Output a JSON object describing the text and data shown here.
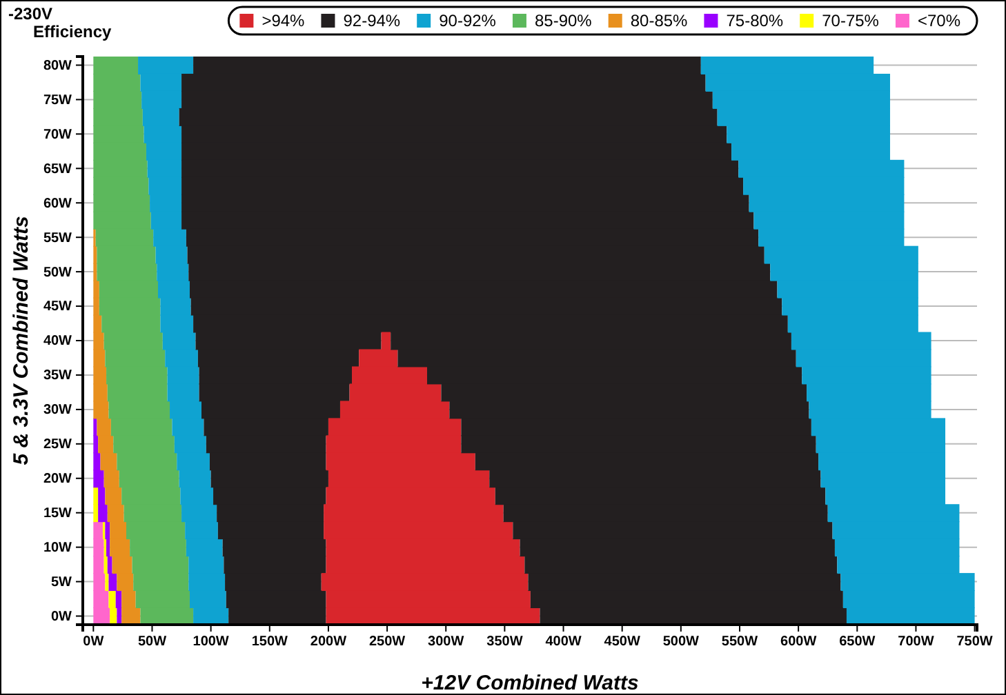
{
  "chart_data": {
    "type": "bar",
    "orientation": "horizontal",
    "stacked": true,
    "title": "-230V",
    "subtitle": "Efficiency",
    "xlabel": "+12V Combined Watts",
    "ylabel": "5 & 3.3V Combined Watts",
    "categories": [
      "80W",
      null,
      "75W",
      null,
      "70W",
      null,
      "65W",
      null,
      "60W",
      null,
      "55W",
      null,
      "50W",
      null,
      "45W",
      null,
      "40W",
      null,
      "35W",
      null,
      "30W",
      null,
      "25W",
      null,
      "20W",
      null,
      "15W",
      null,
      "10W",
      null,
      "5W",
      null,
      "0W"
    ],
    "xlim": [
      -9,
      752
    ],
    "xticks": [
      {
        "value": 0,
        "label": "0W"
      },
      {
        "value": 50,
        "label": "50W"
      },
      {
        "value": 100,
        "label": "100W"
      },
      {
        "value": 150,
        "label": "150W"
      },
      {
        "value": 200,
        "label": "200W"
      },
      {
        "value": 250,
        "label": "250W"
      },
      {
        "value": 300,
        "label": "300W"
      },
      {
        "value": 350,
        "label": "350W"
      },
      {
        "value": 400,
        "label": "400W"
      },
      {
        "value": 450,
        "label": "450W"
      },
      {
        "value": 500,
        "label": "500W"
      },
      {
        "value": 550,
        "label": "550W"
      },
      {
        "value": 600,
        "label": "600W"
      },
      {
        "value": 650,
        "label": "650W"
      },
      {
        "value": 700,
        "label": "700W"
      },
      {
        "value": 750,
        "label": "750W"
      }
    ],
    "grid": "y",
    "legend": "top right",
    "series": [
      {
        "name": "<70%",
        "color": "#ff66cc",
        "values": [
          null,
          null,
          null,
          null,
          null,
          null,
          null,
          null,
          null,
          null,
          null,
          null,
          null,
          null,
          null,
          null,
          null,
          null,
          null,
          null,
          null,
          null,
          null,
          null,
          null,
          null,
          null,
          8,
          9,
          9,
          10,
          13,
          14
        ]
      },
      {
        "name": "70-75%",
        "color": "#ffff00",
        "values": [
          null,
          null,
          null,
          null,
          null,
          null,
          null,
          null,
          null,
          null,
          null,
          null,
          null,
          null,
          null,
          null,
          null,
          null,
          null,
          null,
          null,
          null,
          null,
          null,
          null,
          4,
          4,
          2,
          2,
          3,
          3,
          6,
          6
        ]
      },
      {
        "name": "75-80%",
        "color": "#9900ff",
        "values": [
          null,
          null,
          null,
          null,
          null,
          null,
          null,
          null,
          null,
          null,
          null,
          null,
          null,
          null,
          null,
          null,
          null,
          null,
          null,
          null,
          null,
          3,
          4,
          6,
          9,
          6,
          8,
          4,
          3,
          4,
          7,
          5,
          4
        ]
      },
      {
        "name": "80-85%",
        "color": "#e8901e",
        "values": [
          null,
          null,
          null,
          null,
          null,
          null,
          null,
          null,
          null,
          null,
          2,
          3,
          3,
          5,
          5,
          7,
          9,
          10,
          11,
          12,
          13,
          12,
          13,
          14,
          13,
          14,
          14,
          14,
          17,
          17,
          14,
          12,
          16
        ]
      },
      {
        "name": "85-90%",
        "color": "#5cb85c",
        "values": [
          38,
          40,
          41,
          42,
          43,
          45,
          46,
          47,
          48,
          49,
          49,
          50,
          51,
          50,
          52,
          50,
          50,
          51,
          52,
          51,
          52,
          52,
          52,
          51,
          51,
          50,
          49,
          50,
          48,
          48,
          47,
          46,
          45
        ]
      },
      {
        "name": "90-92%",
        "color": "#0fa3d1",
        "values": [
          47,
          35,
          34,
          31,
          32,
          30,
          29,
          28,
          27,
          26,
          28,
          27,
          27,
          27,
          26,
          28,
          28,
          28,
          27,
          27,
          27,
          27,
          27,
          28,
          27,
          28,
          30,
          28,
          31,
          30,
          31,
          31,
          30
        ]
      },
      {
        "name": "92-94%",
        "color": "#231f20",
        "values": [
          432,
          446,
          452,
          458,
          464,
          468,
          474,
          478,
          483,
          487,
          487,
          491,
          495,
          500,
          503,
          506,
          158,
          137,
          130,
          128,
          118,
          106,
          102,
          99,
          100,
          96,
          91,
          90,
          88,
          87,
          82,
          85,
          83
        ]
      },
      {
        "name": ">94%",
        "color": "#d9262c",
        "values": [
          null,
          null,
          null,
          null,
          null,
          null,
          null,
          null,
          null,
          null,
          null,
          null,
          null,
          null,
          null,
          null,
          8,
          33,
          64,
          78,
          93,
          113,
          115,
          127,
          137,
          144,
          153,
          161,
          165,
          169,
          176,
          174,
          182
        ]
      },
      {
        "color": "#231f20",
        "values": [
          null,
          null,
          null,
          null,
          null,
          null,
          null,
          null,
          null,
          null,
          null,
          null,
          null,
          null,
          null,
          null,
          341,
          339,
          319,
          311,
          306,
          298,
          302,
          292,
          282,
          281,
          276,
          272,
          268,
          266,
          266,
          266,
          261
        ]
      },
      {
        "color": "#0fa3d1",
        "values": [
          147,
          157,
          151,
          147,
          139,
          135,
          141,
          137,
          132,
          128,
          124,
          131,
          126,
          120,
          116,
          111,
          119,
          115,
          110,
          106,
          104,
          114,
          110,
          108,
          106,
          102,
          112,
          108,
          106,
          104,
          114,
          112,
          109
        ]
      }
    ]
  }
}
